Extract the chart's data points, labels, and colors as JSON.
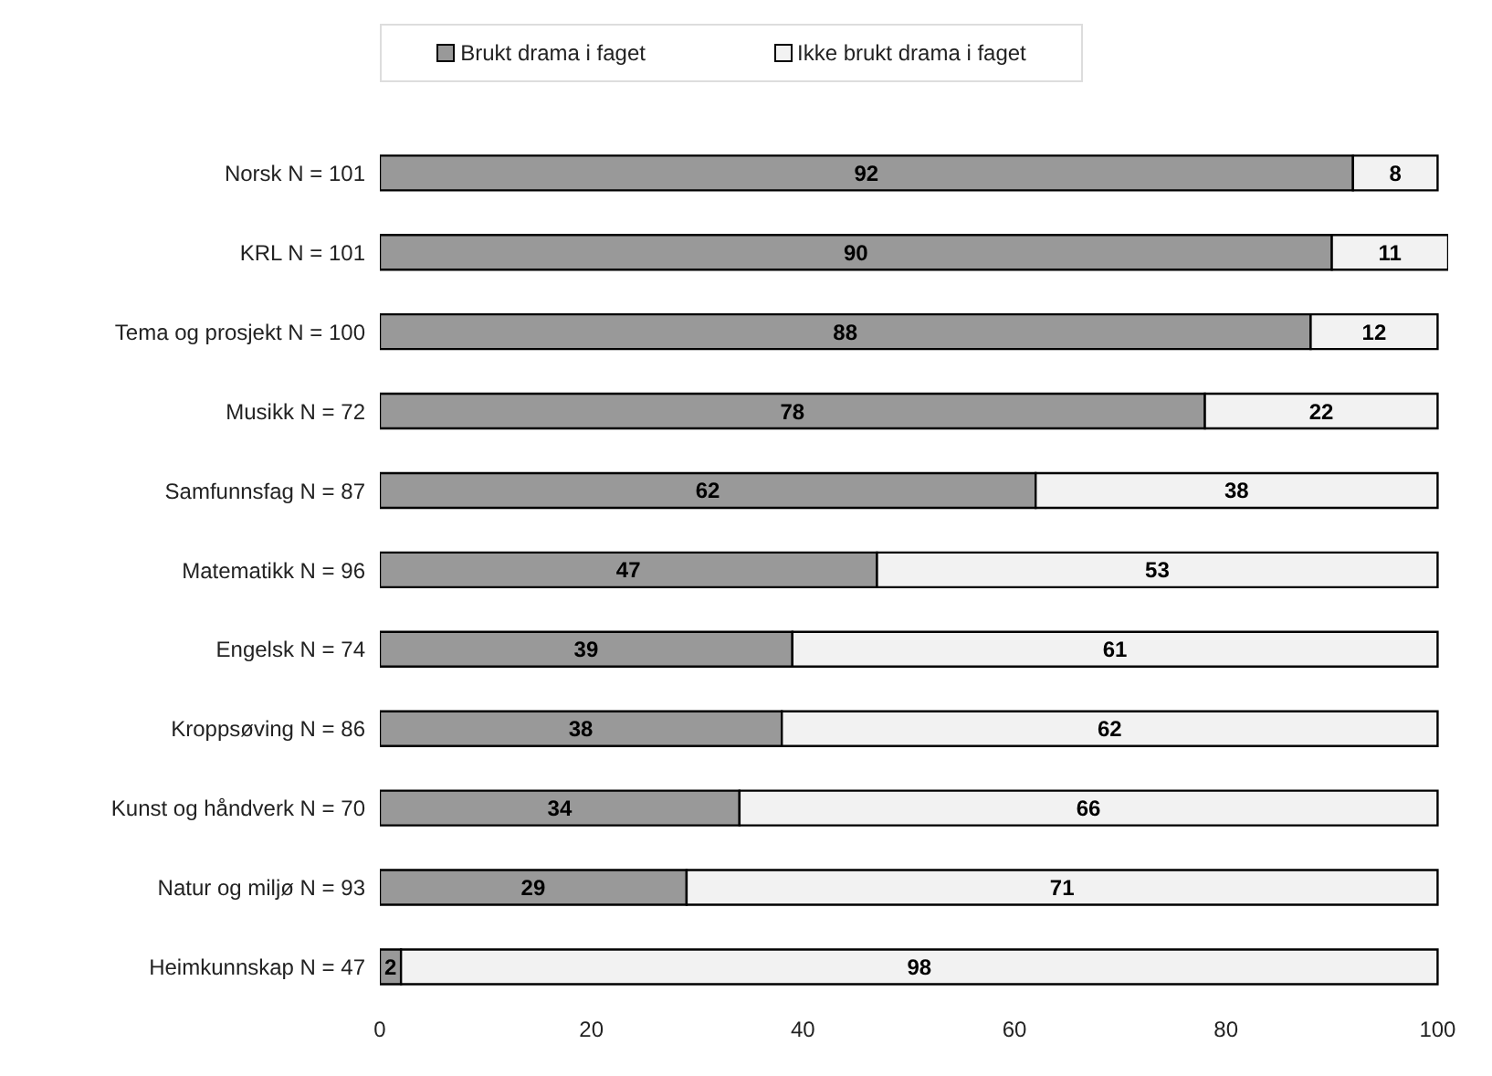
{
  "chart_data": {
    "type": "bar",
    "orientation": "horizontal",
    "stacked": true,
    "data_labels": true,
    "legend": "top",
    "grid": false,
    "categories": [
      "Norsk N = 101",
      "KRL N = 101",
      "Tema og prosjekt N = 100",
      "Musikk N = 72",
      "Samfunnsfag N = 87",
      "Matematikk N = 96",
      "Engelsk N = 74",
      "Kroppsøving N = 86",
      "Kunst og håndverk N = 70",
      "Natur og miljø N = 93",
      "Heimkunnskap N = 47"
    ],
    "series": [
      {
        "name": "Brukt drama i faget",
        "color": "#999999",
        "values": [
          92,
          90,
          88,
          78,
          62,
          47,
          39,
          38,
          34,
          29,
          2
        ]
      },
      {
        "name": "Ikke brukt drama i faget",
        "color": "#f2f2f2",
        "values": [
          8,
          11,
          12,
          22,
          38,
          53,
          61,
          62,
          66,
          71,
          98
        ]
      }
    ],
    "xlim": [
      0,
      101
    ],
    "xticks": [
      0,
      20,
      40,
      60,
      80,
      100
    ]
  }
}
